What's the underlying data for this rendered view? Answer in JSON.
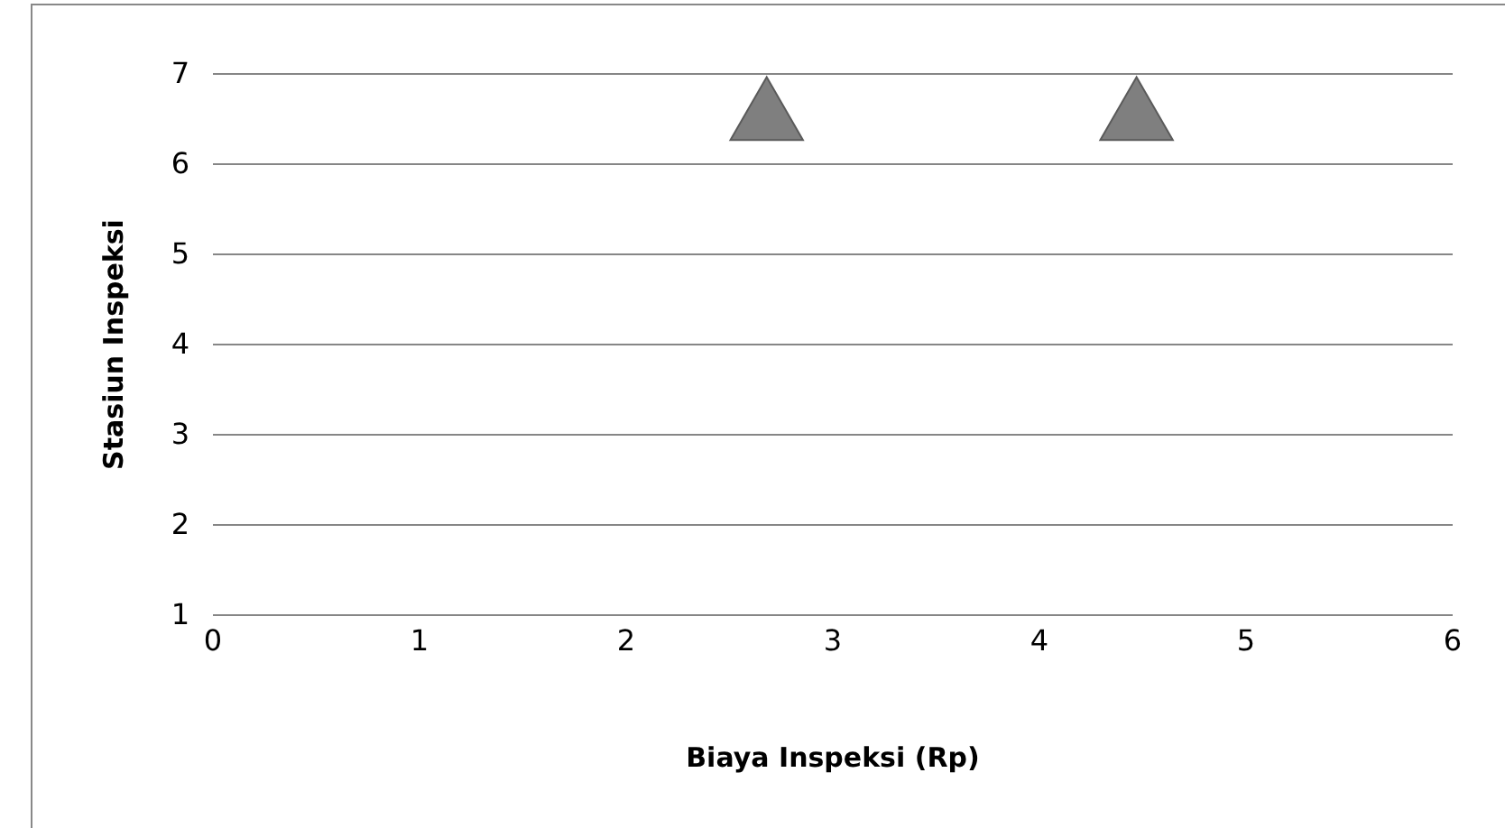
{
  "chart_data": {
    "type": "scatter",
    "xlabel": "Biaya Inspeksi (Rp)",
    "ylabel": "Stasiun Inspeksi",
    "x": [
      2.68,
      4.47
    ],
    "series": [
      {
        "color": "#7f7f7f",
        "values": [
          6.5,
          6.5
        ]
      }
    ],
    "xlim": [
      0,
      6
    ],
    "xticks": [
      0,
      1,
      2,
      3,
      4,
      5,
      6
    ],
    "ylim": [
      1,
      7
    ],
    "yticks": [
      1,
      2,
      3,
      4,
      5,
      6,
      7
    ],
    "grid": "y",
    "marker": "triangle"
  }
}
